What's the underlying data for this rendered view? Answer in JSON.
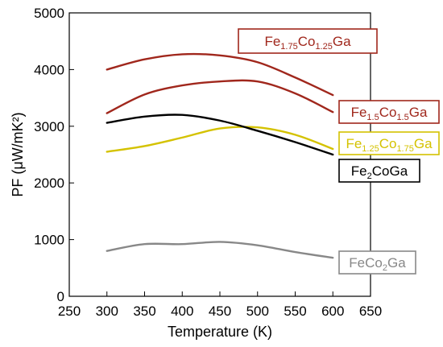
{
  "chart_data": {
    "type": "line",
    "xlabel": "Temperature (K)",
    "ylabel": "PF (μW/mK²)",
    "xlim": [
      250,
      650
    ],
    "ylim": [
      0,
      5000
    ],
    "x_ticks": [
      "250",
      "300",
      "350",
      "400",
      "450",
      "500",
      "550",
      "600",
      "650"
    ],
    "y_ticks": [
      "0",
      "1000",
      "2000",
      "3000",
      "4000",
      "5000"
    ],
    "grid": false,
    "series": [
      {
        "name": "Fe1.75Co1.25Ga",
        "label_parts": [
          [
            "Fe",
            false
          ],
          [
            "1.75",
            true
          ],
          [
            "Co",
            false
          ],
          [
            "1.25",
            true
          ],
          [
            "Ga",
            false
          ]
        ],
        "color": "#a0271c",
        "x": [
          300,
          350,
          400,
          450,
          500,
          550,
          600
        ],
        "y": [
          4000,
          4180,
          4270,
          4250,
          4130,
          3860,
          3550
        ]
      },
      {
        "name": "Fe1.5Co1.5Ga",
        "label_parts": [
          [
            "Fe",
            false
          ],
          [
            "1.5",
            true
          ],
          [
            "Co",
            false
          ],
          [
            "1.5",
            true
          ],
          [
            "Ga",
            false
          ]
        ],
        "color": "#a0271c",
        "x": [
          300,
          350,
          400,
          450,
          500,
          550,
          600
        ],
        "y": [
          3230,
          3560,
          3720,
          3790,
          3790,
          3580,
          3250
        ]
      },
      {
        "name": "Fe1.25Co1.75Ga",
        "label_parts": [
          [
            "Fe",
            false
          ],
          [
            "1.25",
            true
          ],
          [
            "Co",
            false
          ],
          [
            "1.75",
            true
          ],
          [
            "Ga",
            false
          ]
        ],
        "color": "#d4c200",
        "x": [
          300,
          350,
          400,
          450,
          500,
          550,
          600
        ],
        "y": [
          2550,
          2650,
          2800,
          2960,
          2980,
          2850,
          2600
        ]
      },
      {
        "name": "Fe2CoGa",
        "label_parts": [
          [
            "Fe",
            false
          ],
          [
            "2",
            true
          ],
          [
            "CoGa",
            false
          ]
        ],
        "color": "#000000",
        "x": [
          300,
          350,
          400,
          450,
          500,
          550,
          600
        ],
        "y": [
          3060,
          3170,
          3200,
          3100,
          2920,
          2720,
          2500
        ]
      },
      {
        "name": "FeCo2Ga",
        "label_parts": [
          [
            "FeCo",
            false
          ],
          [
            "2",
            true
          ],
          [
            "Ga",
            false
          ]
        ],
        "color": "#888888",
        "x": [
          300,
          350,
          400,
          450,
          500,
          550,
          600
        ],
        "y": [
          800,
          920,
          920,
          960,
          900,
          780,
          680
        ]
      }
    ]
  }
}
